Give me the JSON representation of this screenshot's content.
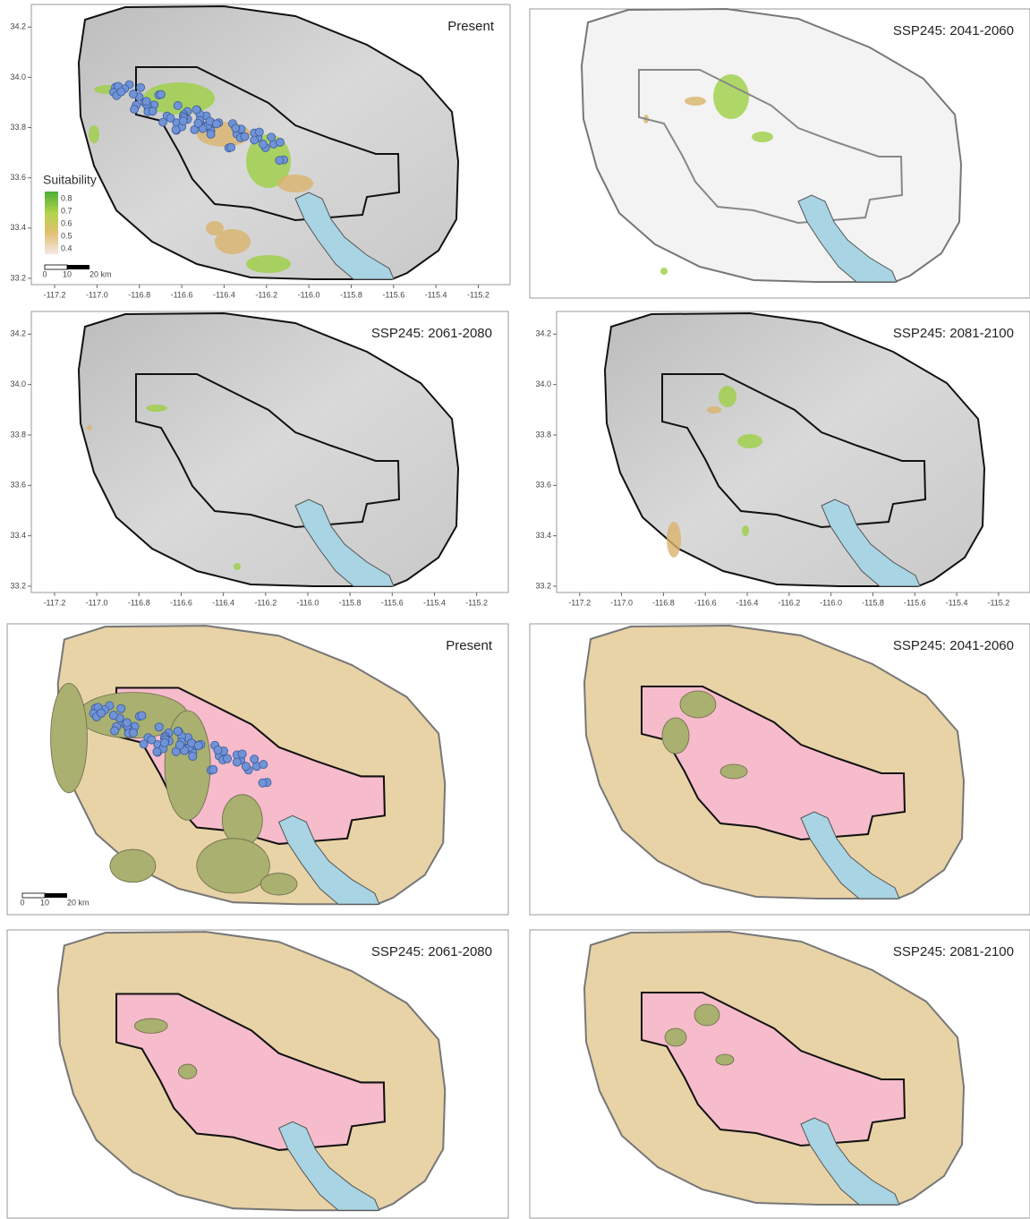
{
  "panels": [
    {
      "title": "Present",
      "tick_labels": true
    },
    {
      "title": "SSP245: 2041-2060",
      "tick_labels": false
    },
    {
      "title": "SSP245: 2061-2080",
      "tick_labels": true
    },
    {
      "title": "SSP245: 2081-2100",
      "tick_labels": true
    },
    {
      "title": "Present",
      "tick_labels": false
    },
    {
      "title": "SSP245: 2041-2060",
      "tick_labels": false
    },
    {
      "title": "SSP245: 2061-2080",
      "tick_labels": false
    },
    {
      "title": "SSP245: 2081-2100",
      "tick_labels": false
    }
  ],
  "axes": {
    "xlim": [
      -117.31,
      -115.05
    ],
    "ylim": [
      33.175,
      34.29
    ],
    "xticks": [
      -117.2,
      {
        "value": -117,
        "label": "-117.0"
      },
      -116.8,
      -116.6,
      -116.4,
      -116.2,
      {
        "value": -116,
        "label": "-116.0"
      },
      -115.8,
      -115.6,
      -115.4,
      -115.2
    ],
    "yticks": [
      33.2,
      33.4,
      33.6,
      33.8,
      {
        "value": 34,
        "label": "34.0"
      },
      34.2
    ]
  },
  "legend": {
    "title": "Suitability",
    "ticks": [
      0.8,
      0.7,
      0.6,
      0.5,
      0.4
    ]
  },
  "scale_bar": {
    "ticks": [
      0,
      10,
      {
        "value": 20,
        "label": "20 km"
      }
    ]
  }
}
